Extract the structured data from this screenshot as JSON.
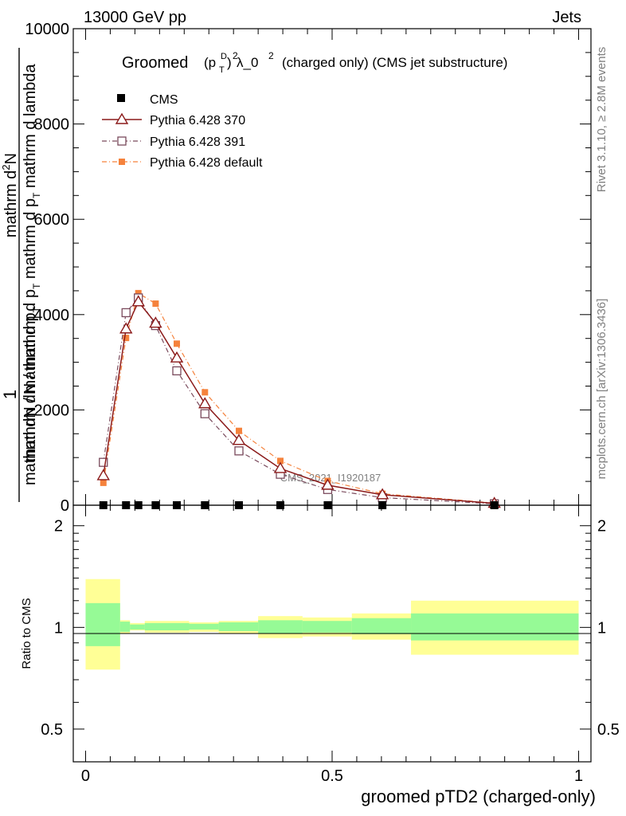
{
  "header": {
    "energy_label": "13000 GeV pp",
    "category_label": "Jets"
  },
  "side_labels": {
    "rivet": "Rivet 3.1.10, ≥ 2.8M events",
    "mcplots": "mcplots.cern.ch [arXiv:1306.3436]"
  },
  "watermark": "CMS_2021_I1920187",
  "chart_data": [
    {
      "type": "line",
      "title_lead": "Groomed",
      "title_math_base": "(p",
      "title_math_sub": "T",
      "title_math_sup": "D",
      "title_math_close": ")",
      "title_math_pow": "2",
      "title_math_tail": " λ_0",
      "title_math_tailpow": "2",
      "title_rest": "(charged only) (CMS jet substructure)",
      "ylabel_fraction_num": "1",
      "ylabel_upper": "mathrm dN / mathrm d p_T mathrm d p_T mathrm d lambda",
      "ylabel_upper_display": "mathrm dN / mathrm d p",
      "ylabel_sub": "T",
      "ylabel_numerator": "mathrm d",
      "ylabel_numerator_sup": "2",
      "ylabel_numerator_tail": "N",
      "ylabel_denominator_a": "mathrm dN / mathrm d p",
      "ylabel_denominator_b": " mathrm d p",
      "ylabel_denominator_c": " mathrm d lambda",
      "ylim": [
        0,
        10000
      ],
      "xlim": [
        -0.025,
        1.025
      ],
      "yticks": [
        0,
        2000,
        4000,
        6000,
        8000,
        10000
      ],
      "ytick_labels": [
        "0",
        "2000",
        "4000",
        "6000",
        "8000",
        "10000"
      ],
      "legend": [
        "CMS",
        "Pythia 6.428 370",
        "Pythia 6.428 391",
        "Pythia 6.428 default"
      ],
      "legend_position": "top-left",
      "colors": {
        "cms": "#000000",
        "p370": "#8b1a1a",
        "p391": "#7a4a5c",
        "default": "#f5823c"
      },
      "x": [
        0.036,
        0.082,
        0.107,
        0.142,
        0.185,
        0.242,
        0.311,
        0.395,
        0.491,
        0.602,
        0.829
      ],
      "series": [
        {
          "name": "CMS",
          "values": [
            0,
            0,
            0,
            0,
            0,
            0,
            0,
            0,
            0,
            0,
            0
          ]
        },
        {
          "name": "Pythia 6.428 370",
          "values": [
            620,
            3700,
            4270,
            3820,
            3090,
            2130,
            1360,
            770,
            420,
            220,
            40
          ]
        },
        {
          "name": "Pythia 6.428 391",
          "values": [
            900,
            4040,
            4350,
            3770,
            2820,
            1920,
            1140,
            650,
            330,
            160,
            30
          ]
        },
        {
          "name": "Pythia 6.428 default",
          "values": [
            470,
            3510,
            4450,
            4230,
            3390,
            2370,
            1560,
            930,
            510,
            240,
            45
          ]
        }
      ]
    },
    {
      "type": "area",
      "ylabel": "Ratio to CMS",
      "xlabel": "groomed pTD2 (charged-only)",
      "ylim": [
        0.4,
        2.3
      ],
      "log_y": true,
      "yticks": [
        0.5,
        1,
        2
      ],
      "ytick_labels": [
        "0.5",
        "1",
        "2"
      ],
      "xticks": [
        0,
        0.5,
        1
      ],
      "xtick_labels": [
        "0",
        "0.5",
        "1"
      ],
      "band_colors": {
        "stat": "#96fa96",
        "syst": "#ffff96"
      },
      "bins": [
        {
          "lo": 0.0,
          "hi": 0.07,
          "stat": [
            0.88,
            1.18
          ],
          "syst": [
            0.75,
            1.39
          ]
        },
        {
          "lo": 0.07,
          "hi": 0.09,
          "stat": [
            0.97,
            1.04
          ],
          "syst": [
            0.96,
            1.05
          ]
        },
        {
          "lo": 0.09,
          "hi": 0.12,
          "stat": [
            0.985,
            1.02
          ],
          "syst": [
            0.98,
            1.03
          ]
        },
        {
          "lo": 0.12,
          "hi": 0.21,
          "stat": [
            0.98,
            1.03
          ],
          "syst": [
            0.965,
            1.045
          ]
        },
        {
          "lo": 0.21,
          "hi": 0.27,
          "stat": [
            0.985,
            1.025
          ],
          "syst": [
            0.97,
            1.035
          ]
        },
        {
          "lo": 0.27,
          "hi": 0.35,
          "stat": [
            0.975,
            1.035
          ],
          "syst": [
            0.96,
            1.045
          ]
        },
        {
          "lo": 0.35,
          "hi": 0.44,
          "stat": [
            0.96,
            1.05
          ],
          "syst": [
            0.93,
            1.08
          ]
        },
        {
          "lo": 0.44,
          "hi": 0.54,
          "stat": [
            0.965,
            1.045
          ],
          "syst": [
            0.94,
            1.07
          ]
        },
        {
          "lo": 0.54,
          "hi": 0.66,
          "stat": [
            0.955,
            1.065
          ],
          "syst": [
            0.92,
            1.1
          ]
        },
        {
          "lo": 0.66,
          "hi": 1.0,
          "stat": [
            0.915,
            1.1
          ],
          "syst": [
            0.83,
            1.2
          ]
        }
      ]
    }
  ]
}
